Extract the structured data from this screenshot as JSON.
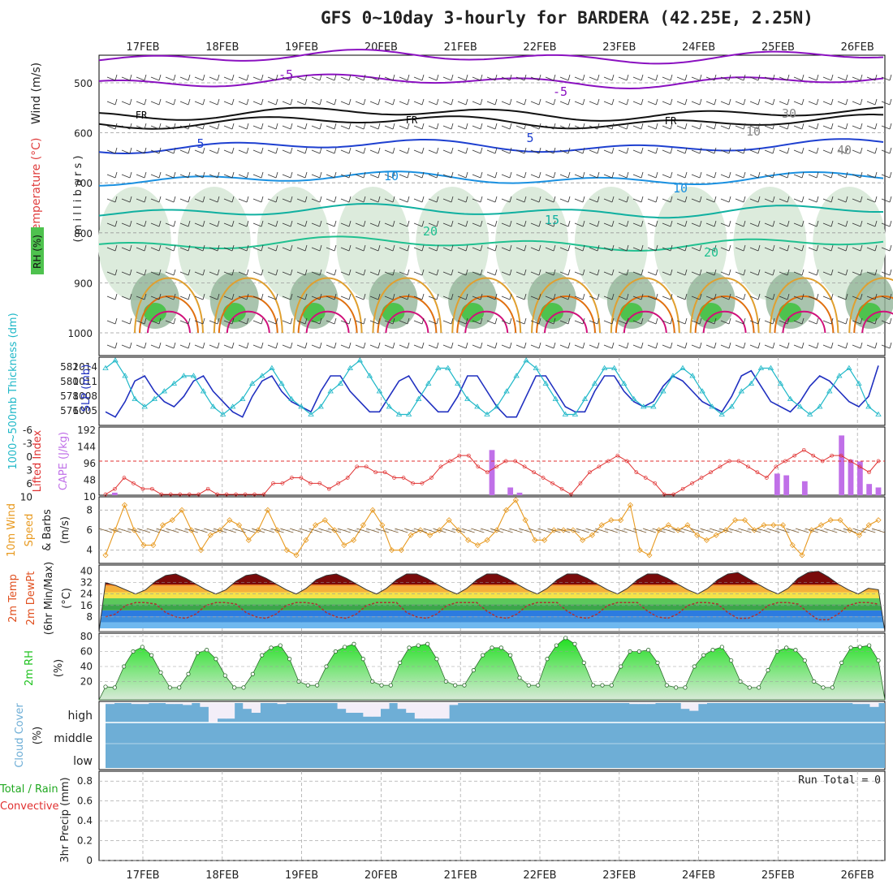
{
  "title": "GFS 0~10day 3-hourly for BARDERA (42.25E, 2.25N)",
  "date_labels": [
    "17FEB",
    "18FEB",
    "19FEB",
    "20FEB",
    "21FEB",
    "22FEB",
    "23FEB",
    "24FEB",
    "25FEB",
    "26FEB"
  ],
  "colors": {
    "rh_dark": "#3a5a40",
    "rh_mid": "#93b59a",
    "rh_light": "#dcebdc",
    "rh_bright": "#4ec24e",
    "temp_purple": "#8a10c0",
    "temp_blue": "#1e40d0",
    "temp_cyan": "#1a90e0",
    "temp_teal": "#10b0a0",
    "temp_green": "#20c090",
    "temp_orange": "#e0a030",
    "temp_darkorange": "#e07010",
    "temp_magenta": "#d0107a",
    "slp": "#2030c0",
    "thickness": "#20b8c8",
    "lifted": "#e03030",
    "cape": "#c070e8",
    "wind": "#e89a20",
    "cloud": "#6eaed6",
    "cloud_clear": "#f3eef8",
    "rh2m": "#1fc21f"
  },
  "panels": {
    "profile": {
      "label_wind": "Wind (m/s)",
      "label_temp": "Temperature (°C)",
      "label_rh": "RH (%)",
      "label_axis": "( m i l l i b a r s )",
      "ticks": [
        "500",
        "600",
        "700",
        "800",
        "900",
        "1000"
      ],
      "contour_labels": [
        "-5",
        "-5",
        "FR",
        "FR",
        "FR",
        "5",
        "5",
        "10",
        "10",
        "15",
        "20",
        "20",
        "30",
        "40",
        "10"
      ]
    },
    "slp": {
      "label_thick": "1000~500mb Thickness (dm)",
      "label_slp": "SLP (mb)",
      "left_ticks": [
        "582",
        "580",
        "578",
        "576"
      ],
      "right_ticks": [
        "1014",
        "1011",
        "1008",
        "1005"
      ]
    },
    "cape": {
      "label_li": "Lifted Index",
      "label_cape": "CAPE (J/kg)",
      "left_ticks": [
        "-6",
        "-3",
        "0",
        "3",
        "6",
        "10"
      ],
      "right_ticks": [
        "192",
        "144",
        "96",
        "48",
        "10"
      ]
    },
    "wind": {
      "label_a": "10m Wind",
      "label_b": "Speed",
      "label_c": "& Barbs",
      "label_unit": "(m/s)",
      "ticks": [
        "8",
        "6",
        "4"
      ]
    },
    "temp2m": {
      "label_a": "2m Temp",
      "label_b": "2m DewPt",
      "label_c": "(6hr Min/Max)",
      "label_unit": "(°C)",
      "ticks": [
        "40",
        "32",
        "24",
        "16",
        "8"
      ]
    },
    "rh2m": {
      "label": "2m RH",
      "label_unit": "(%)",
      "ticks": [
        "80",
        "60",
        "40",
        "20"
      ]
    },
    "cloud": {
      "label": "Cloud Cover",
      "label_unit": "(%)",
      "levels": [
        "high",
        "middle",
        "low"
      ]
    },
    "precip": {
      "label_a": "Total / Rain",
      "label_b": "Convective",
      "label_axis": "3hr Precip (mm)",
      "ticks": [
        "0.8",
        "0.6",
        "0.4",
        "0.2",
        "0"
      ],
      "run_total": "Run Total = 0"
    }
  },
  "chart_data": [
    {
      "type": "line",
      "name": "slp",
      "y_unit": "mb",
      "ylim": [
        1004,
        1016
      ],
      "values": [
        1006,
        1005,
        1008,
        1012,
        1013,
        1010,
        1008,
        1007,
        1009,
        1012,
        1013,
        1010,
        1008,
        1006,
        1005,
        1009,
        1012,
        1013,
        1010,
        1008,
        1007,
        1006,
        1010,
        1013,
        1013,
        1010,
        1008,
        1006,
        1006,
        1009,
        1012,
        1013,
        1010,
        1008,
        1006,
        1006,
        1009,
        1013,
        1013,
        1010,
        1007,
        1005,
        1005,
        1009,
        1013,
        1013,
        1010,
        1007,
        1006,
        1006,
        1010,
        1013,
        1013,
        1010,
        1008,
        1007,
        1008,
        1011,
        1013,
        1012,
        1010,
        1008,
        1007,
        1006,
        1009,
        1013,
        1014,
        1011,
        1008,
        1007,
        1006,
        1008,
        1011,
        1013,
        1012,
        1010,
        1008,
        1007,
        1009,
        1015
      ]
    },
    {
      "type": "line",
      "name": "thickness",
      "y_unit": "dm",
      "ylim": [
        575,
        583
      ],
      "values": [
        582,
        583,
        581,
        578,
        577,
        578,
        579,
        580,
        581,
        581,
        579,
        577,
        576,
        577,
        578,
        580,
        581,
        582,
        580,
        578,
        577,
        576,
        577,
        579,
        580,
        582,
        583,
        581,
        579,
        577,
        576,
        576,
        578,
        580,
        582,
        582,
        580,
        578,
        577,
        576,
        577,
        579,
        581,
        583,
        582,
        580,
        578,
        576,
        576,
        578,
        580,
        582,
        582,
        580,
        578,
        577,
        577,
        579,
        581,
        582,
        581,
        579,
        577,
        576,
        577,
        579,
        580,
        582,
        582,
        580,
        578,
        577,
        576,
        577,
        579,
        581,
        582,
        580,
        577,
        576
      ]
    },
    {
      "type": "bar",
      "name": "cape",
      "y_unit": "J/kg",
      "ylim": [
        0,
        192
      ],
      "values": [
        0,
        5,
        0,
        0,
        0,
        0,
        0,
        0,
        0,
        0,
        0,
        0,
        0,
        0,
        0,
        0,
        0,
        0,
        0,
        0,
        0,
        0,
        0,
        0,
        0,
        0,
        0,
        0,
        0,
        0,
        0,
        0,
        0,
        0,
        0,
        0,
        0,
        0,
        0,
        0,
        0,
        0,
        128,
        0,
        20,
        5,
        0,
        0,
        0,
        0,
        0,
        0,
        0,
        0,
        0,
        0,
        0,
        0,
        0,
        0,
        0,
        0,
        0,
        0,
        0,
        0,
        0,
        0,
        0,
        0,
        0,
        0,
        0,
        60,
        55,
        0,
        38,
        0,
        0,
        0,
        170,
        100,
        95,
        30,
        20
      ]
    },
    {
      "type": "line",
      "name": "lifted_index",
      "ylim": [
        -6,
        6
      ],
      "values": [
        6,
        5,
        3,
        4,
        5,
        5,
        6,
        6,
        6,
        6,
        6,
        5,
        6,
        6,
        6,
        6,
        6,
        6,
        4,
        4,
        3,
        3,
        4,
        4,
        5,
        4,
        3,
        1,
        1,
        2,
        2,
        3,
        3,
        4,
        4,
        3,
        1,
        0,
        -1,
        -1,
        1,
        2,
        1,
        0,
        0,
        1,
        2,
        3,
        4,
        5,
        6,
        4,
        2,
        1,
        0,
        -1,
        0,
        2,
        3,
        4,
        6,
        6,
        5,
        4,
        3,
        2,
        1,
        0,
        0,
        1,
        2,
        3,
        1,
        0,
        -1,
        -2,
        -1,
        0,
        -1,
        -1,
        0,
        1,
        2,
        0
      ]
    },
    {
      "type": "line",
      "name": "wind_speed",
      "y_unit": "m/s",
      "ylim": [
        3,
        9
      ],
      "values": [
        3.5,
        6,
        8.5,
        6,
        4.5,
        4.5,
        6.5,
        7,
        8,
        6,
        4,
        5.5,
        6,
        7,
        6.5,
        5,
        6,
        8,
        6,
        4,
        3.5,
        5,
        6.5,
        7,
        6,
        4.5,
        5,
        6.5,
        8,
        6.5,
        4,
        4,
        5.5,
        6,
        5.5,
        6,
        7,
        6,
        5,
        4.5,
        5,
        6,
        8,
        9,
        7,
        5,
        5,
        6,
        6,
        6,
        5,
        5.5,
        6.5,
        7,
        7,
        8.5,
        4,
        3.5,
        6,
        6.5,
        6,
        6.5,
        5.5,
        5,
        5.5,
        6,
        7,
        7,
        6,
        6.5,
        6.5,
        6.5,
        4.5,
        3.5,
        6,
        6.5,
        7,
        7,
        6,
        5.5,
        6.5,
        7
      ]
    },
    {
      "type": "area",
      "name": "temp_2m",
      "y_unit": "°C",
      "ylim": [
        0,
        42
      ],
      "values": [
        32,
        30,
        27,
        24,
        27,
        33,
        37,
        38,
        35,
        31,
        27,
        24,
        27,
        33,
        37,
        38,
        35,
        31,
        27,
        24,
        28,
        34,
        37,
        38,
        35,
        31,
        27,
        24,
        28,
        34,
        38,
        38,
        35,
        31,
        27,
        24,
        28,
        34,
        38,
        38,
        35,
        31,
        27,
        24,
        28,
        34,
        38,
        38,
        35,
        31,
        27,
        24,
        28,
        34,
        38,
        38,
        35,
        31,
        27,
        24,
        28,
        34,
        38,
        39,
        35,
        31,
        27,
        24,
        28,
        35,
        39,
        40,
        36,
        31,
        27,
        24,
        28,
        27
      ]
    },
    {
      "type": "line",
      "name": "dewpoint_2m",
      "y_unit": "°C",
      "ylim": [
        0,
        42
      ],
      "values": [
        8,
        10,
        16,
        18,
        18,
        17,
        11,
        8,
        7,
        10,
        16,
        18,
        18,
        17,
        11,
        8,
        7,
        10,
        16,
        18,
        18,
        17,
        11,
        8,
        7,
        10,
        16,
        18,
        18,
        18,
        11,
        8,
        7,
        10,
        16,
        18,
        18,
        18,
        12,
        8,
        7,
        10,
        16,
        18,
        18,
        18,
        12,
        8,
        7,
        10,
        16,
        18,
        18,
        18,
        12,
        8,
        7,
        10,
        16,
        18,
        18,
        17,
        11,
        7,
        7,
        10,
        16,
        18,
        18,
        17,
        11,
        6,
        6,
        10,
        16,
        18,
        18,
        17
      ]
    },
    {
      "type": "area",
      "name": "rh_2m",
      "y_unit": "%",
      "ylim": [
        0,
        80
      ],
      "values": [
        13,
        12,
        40,
        60,
        66,
        55,
        32,
        12,
        12,
        30,
        58,
        62,
        50,
        28,
        12,
        12,
        30,
        55,
        65,
        68,
        50,
        20,
        15,
        15,
        40,
        60,
        66,
        70,
        50,
        20,
        15,
        15,
        45,
        65,
        68,
        70,
        50,
        20,
        15,
        15,
        35,
        55,
        65,
        65,
        55,
        25,
        15,
        15,
        50,
        68,
        78,
        70,
        45,
        15,
        15,
        15,
        40,
        60,
        60,
        62,
        45,
        15,
        12,
        12,
        40,
        55,
        62,
        66,
        48,
        20,
        12,
        12,
        35,
        60,
        65,
        62,
        48,
        20,
        12,
        12,
        45,
        65,
        66,
        68,
        48
      ]
    },
    {
      "type": "bar",
      "name": "cloud_high",
      "y_unit": "%",
      "ylim": [
        0,
        100
      ],
      "values": [
        5,
        0,
        0,
        5,
        5,
        0,
        0,
        5,
        5,
        10,
        0,
        20,
        100,
        80,
        80,
        0,
        30,
        50,
        0,
        0,
        5,
        0,
        0,
        0,
        0,
        0,
        0,
        30,
        50,
        50,
        70,
        70,
        30,
        0,
        30,
        50,
        80,
        80,
        80,
        80,
        10,
        0,
        0,
        0,
        0,
        0,
        0,
        0,
        0,
        0,
        0,
        0,
        0,
        0,
        0,
        0,
        0,
        0,
        0,
        0,
        0,
        5,
        5,
        5,
        0,
        0,
        0,
        30,
        40,
        5,
        0,
        0,
        0,
        0,
        0,
        0,
        0,
        0,
        0,
        0,
        0,
        0,
        0,
        0,
        0,
        0,
        0,
        5,
        5,
        20
      ]
    },
    {
      "type": "line",
      "name": "precip_3hr",
      "y_unit": "mm",
      "ylim": [
        0,
        0.9
      ],
      "values": [
        0,
        0,
        0,
        0,
        0,
        0,
        0,
        0,
        0,
        0
      ]
    }
  ]
}
